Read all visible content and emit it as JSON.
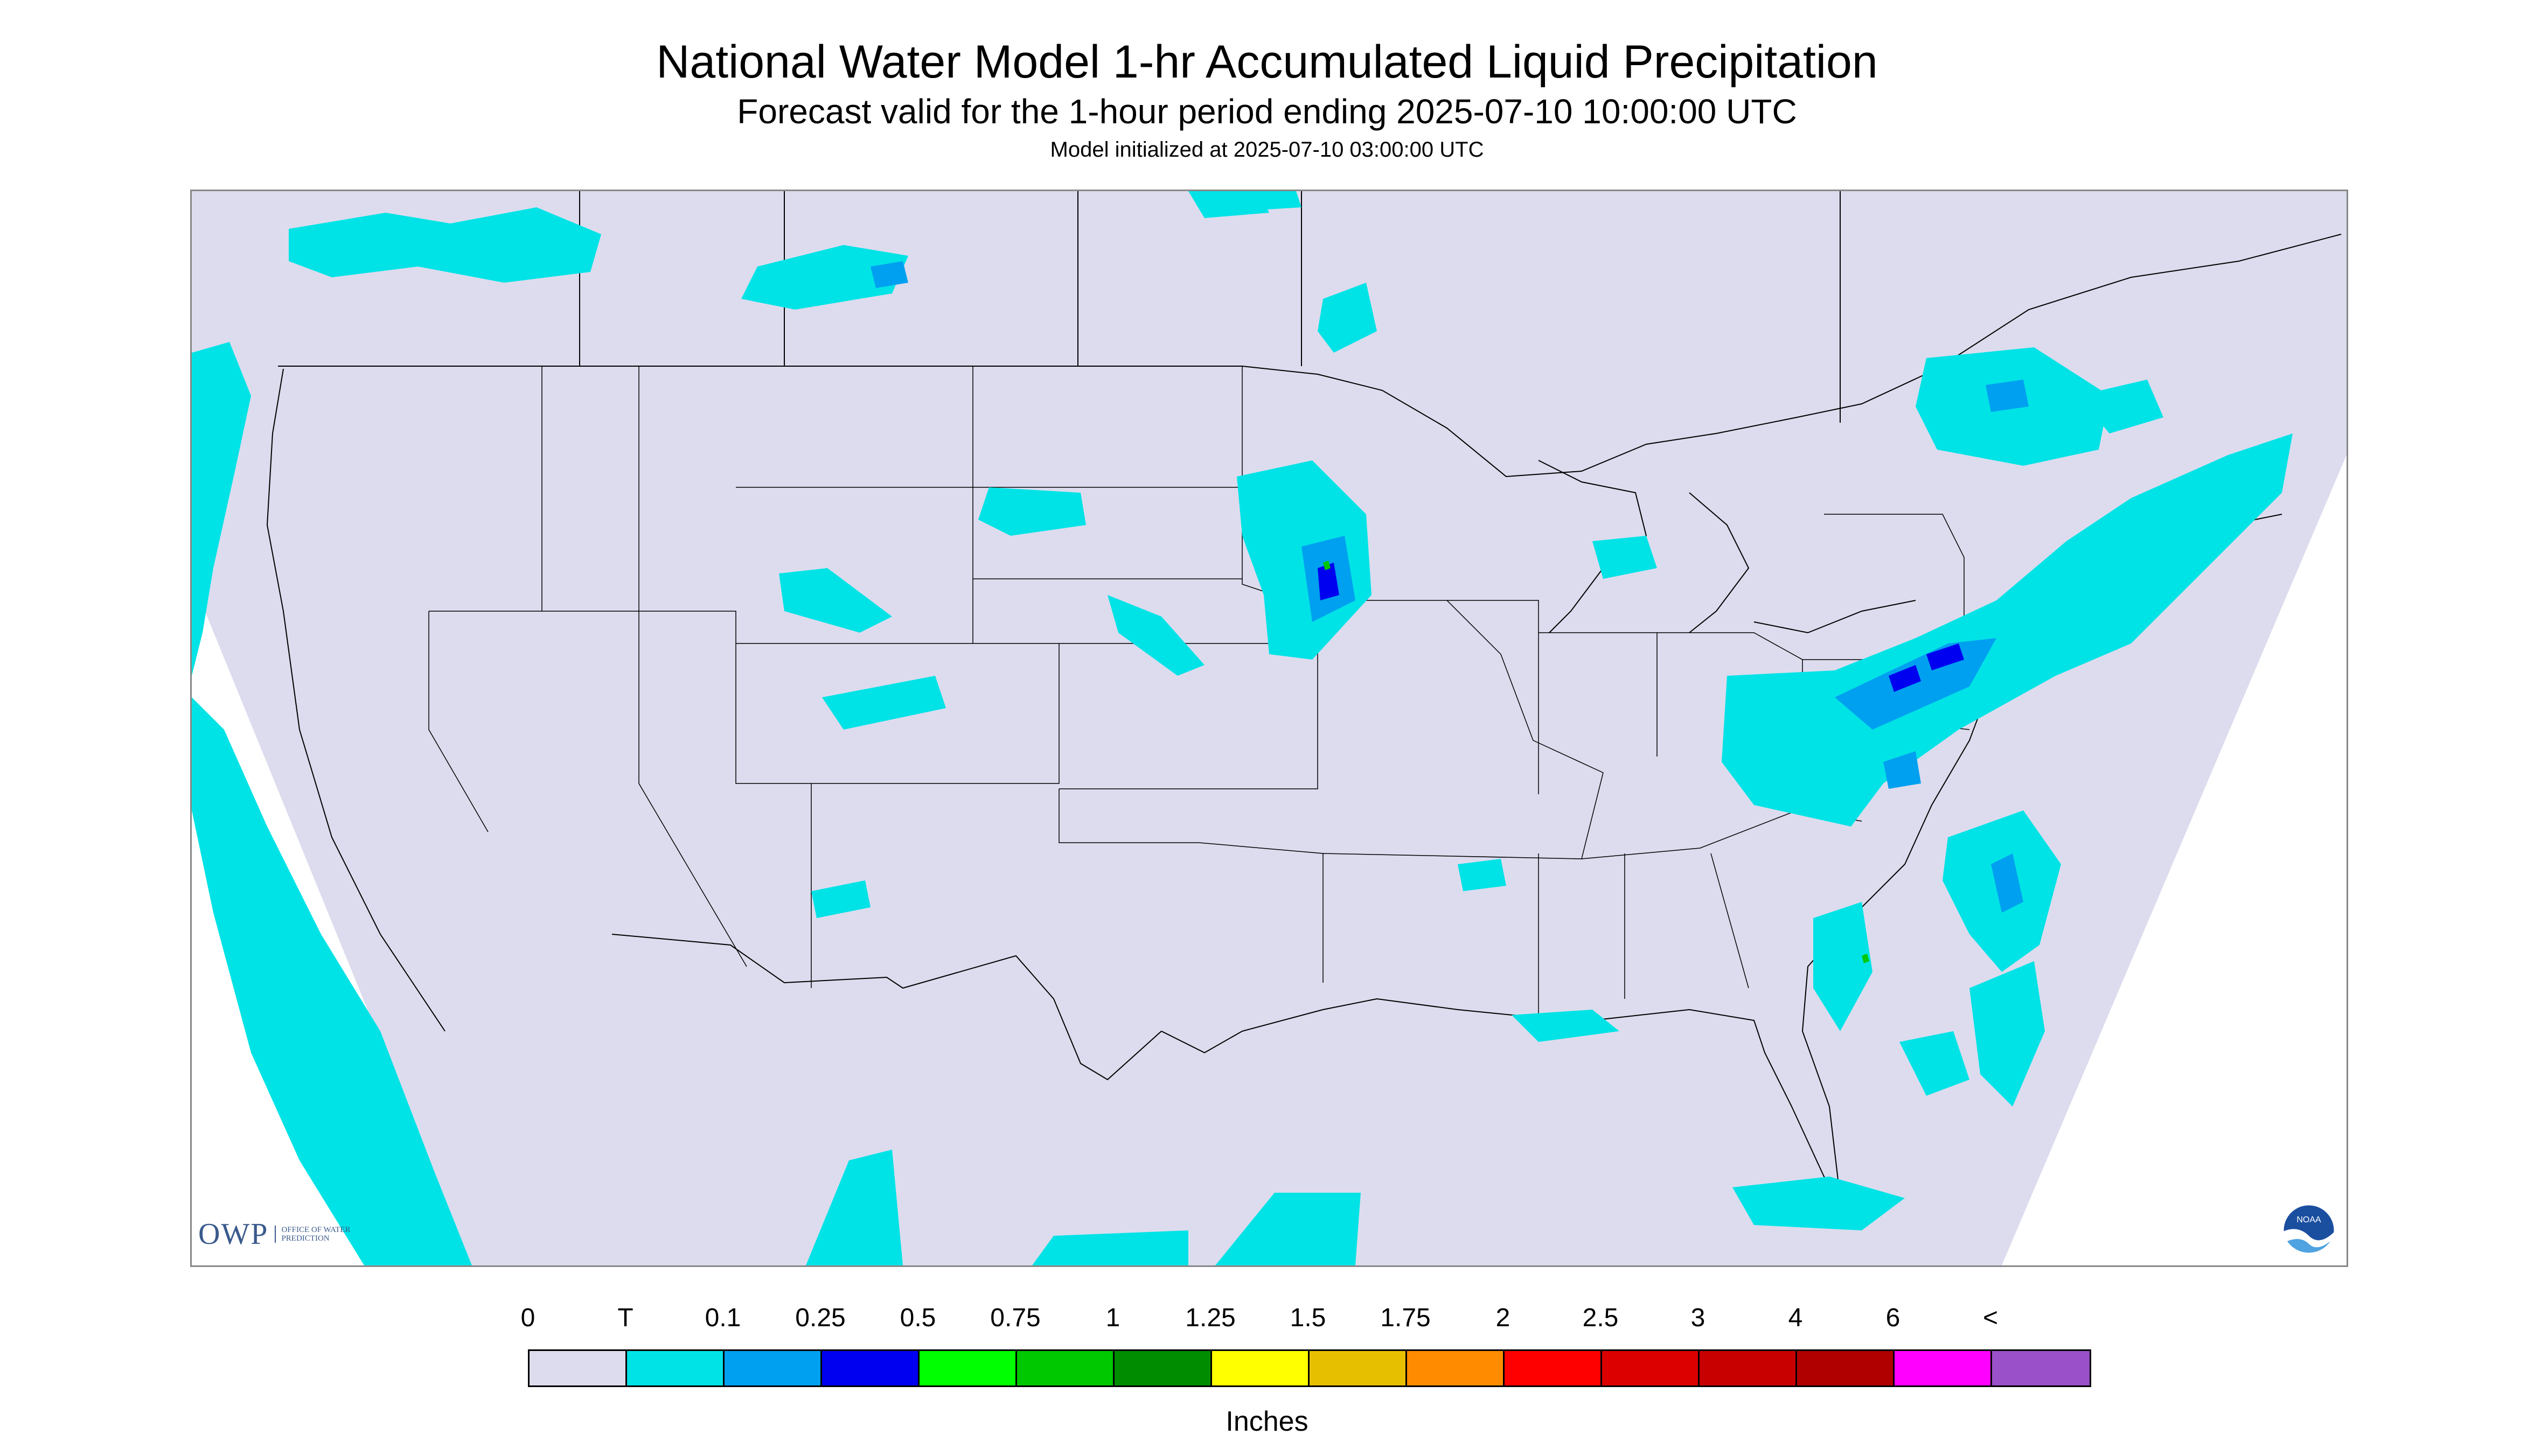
{
  "title": "National Water Model 1-hr Accumulated Liquid Precipitation",
  "subtitle": "Forecast valid for the 1-hour period ending 2025-07-10 10:00:00 UTC",
  "init_text": "Model initialized at 2025-07-10 03:00:00 UTC",
  "logos": {
    "owp_mark": "OWP",
    "owp_text": "OFFICE OF WATER PREDICTION",
    "noaa_text": "NOAA"
  },
  "legend": {
    "labels": [
      "0",
      "T",
      "0.1",
      "0.25",
      "0.5",
      "0.75",
      "1",
      "1.25",
      "1.5",
      "1.75",
      "2",
      "2.5",
      "3",
      "4",
      "6",
      "<"
    ],
    "colors": [
      "#dcdcee",
      "#00e3e6",
      "#00a0f0",
      "#0000f0",
      "#00ff00",
      "#00c800",
      "#008c00",
      "#ffff00",
      "#e6c000",
      "#ff8c00",
      "#ff0000",
      "#dc0000",
      "#c80000",
      "#b00000",
      "#ff00ff",
      "#9a50c8"
    ],
    "unit": "Inches"
  },
  "colors": {
    "land_background": "#dcdcee",
    "trace": "#00e3e6",
    "light": "#00a0f0",
    "moderate": "#0000f0",
    "heavy": "#00c800",
    "boundary": "#000000"
  }
}
